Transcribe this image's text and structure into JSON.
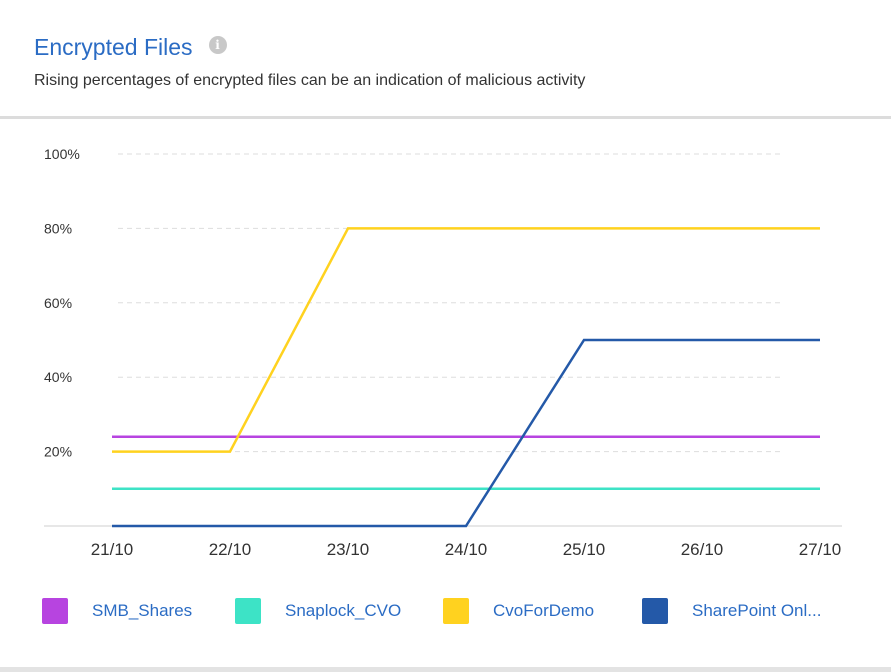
{
  "header": {
    "title": "Encrypted Files",
    "subtitle": "Rising percentages of encrypted files can be an indication of malicious activity"
  },
  "chart_data": {
    "type": "line",
    "x": [
      "21/10",
      "22/10",
      "23/10",
      "24/10",
      "25/10",
      "26/10",
      "27/10"
    ],
    "ylim": [
      0,
      100
    ],
    "yticks": [
      100,
      80,
      60,
      40,
      20
    ],
    "ytick_labels": [
      "100%",
      "80%",
      "60%",
      "40%",
      "20%"
    ],
    "grid": true,
    "legend_position": "bottom",
    "series": [
      {
        "name": "SMB_Shares",
        "color": "#b744e0",
        "values": [
          24,
          24,
          24,
          24,
          24,
          24,
          24
        ]
      },
      {
        "name": "Snaplock_CVO",
        "color": "#3de3c6",
        "values": [
          10,
          10,
          10,
          10,
          10,
          10,
          10
        ]
      },
      {
        "name": "CvoForDemo",
        "color": "#ffd21f",
        "values": [
          20,
          20,
          80,
          80,
          80,
          80,
          80
        ]
      },
      {
        "name": "SharePoint Onl...",
        "color": "#2459a8",
        "values": [
          0,
          0,
          0,
          0,
          50,
          50,
          50
        ]
      }
    ]
  }
}
